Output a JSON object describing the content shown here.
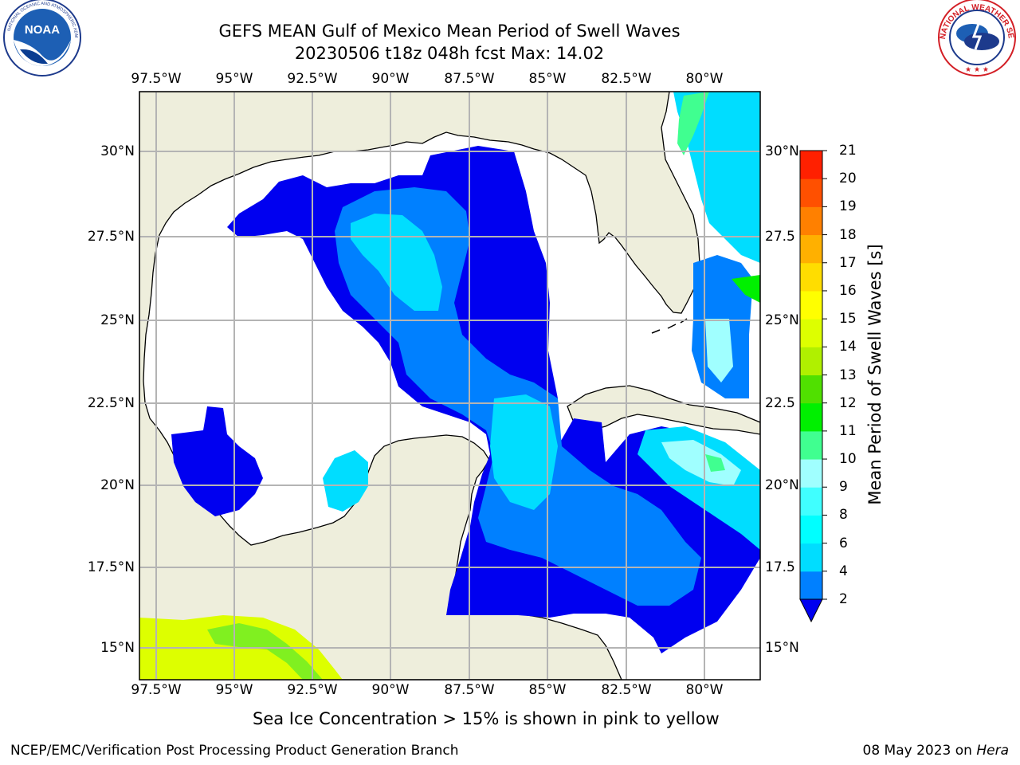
{
  "title": {
    "line1": "GEFS MEAN Gulf of Mexico Mean Period of Swell Waves",
    "line2": "20230506 t18z 048h fcst   Max: 14.02"
  },
  "logos": {
    "left": {
      "icon": "noaa-logo",
      "text": "NOAA"
    },
    "right": {
      "icon": "national-weather-service-logo",
      "text": "NATIONAL WEATHER SERVICE"
    }
  },
  "map": {
    "lon_ticks": [
      "97.5°W",
      "95°W",
      "92.5°W",
      "90°W",
      "87.5°W",
      "85°W",
      "82.5°W",
      "80°W"
    ],
    "lat_ticks_left": [
      "30°N",
      "27.5°N",
      "25°N",
      "22.5°N",
      "20°N",
      "17.5°N",
      "15°N"
    ],
    "lat_ticks_right": [
      "30°N",
      "27.5",
      "25°N",
      "22.5",
      "20°N",
      "17.5",
      "15°N"
    ],
    "land_color": "#EEEEDC",
    "ocean_color": "#FFFFFF",
    "grid_color": "#B4B4B4"
  },
  "colorbar": {
    "title": "Mean Period of Swell Waves [s]",
    "labels": [
      "2",
      "4",
      "6",
      "8",
      "9",
      "10",
      "11",
      "12",
      "13",
      "14",
      "15",
      "16",
      "17",
      "18",
      "19",
      "20",
      "21"
    ],
    "colors": [
      "#0000F0",
      "#0080FF",
      "#00DDFF",
      "#00FFFF",
      "#40FFFF",
      "#A0FFFF",
      "#40FF90",
      "#00F000",
      "#50E000",
      "#B0F000",
      "#DDFF00",
      "#FFFF00",
      "#FFDD00",
      "#FFB000",
      "#FF8000",
      "#FF5000",
      "#FF2000",
      "#FF0000"
    ],
    "extend": "min"
  },
  "footnote": "Sea Ice Concentration > 15% is shown in pink to yellow",
  "footer": {
    "left": "NCEP/EMC/Verification Post Processing Product Generation Branch",
    "right_prefix": "08 May 2023 on ",
    "right_machine": "Hera"
  }
}
